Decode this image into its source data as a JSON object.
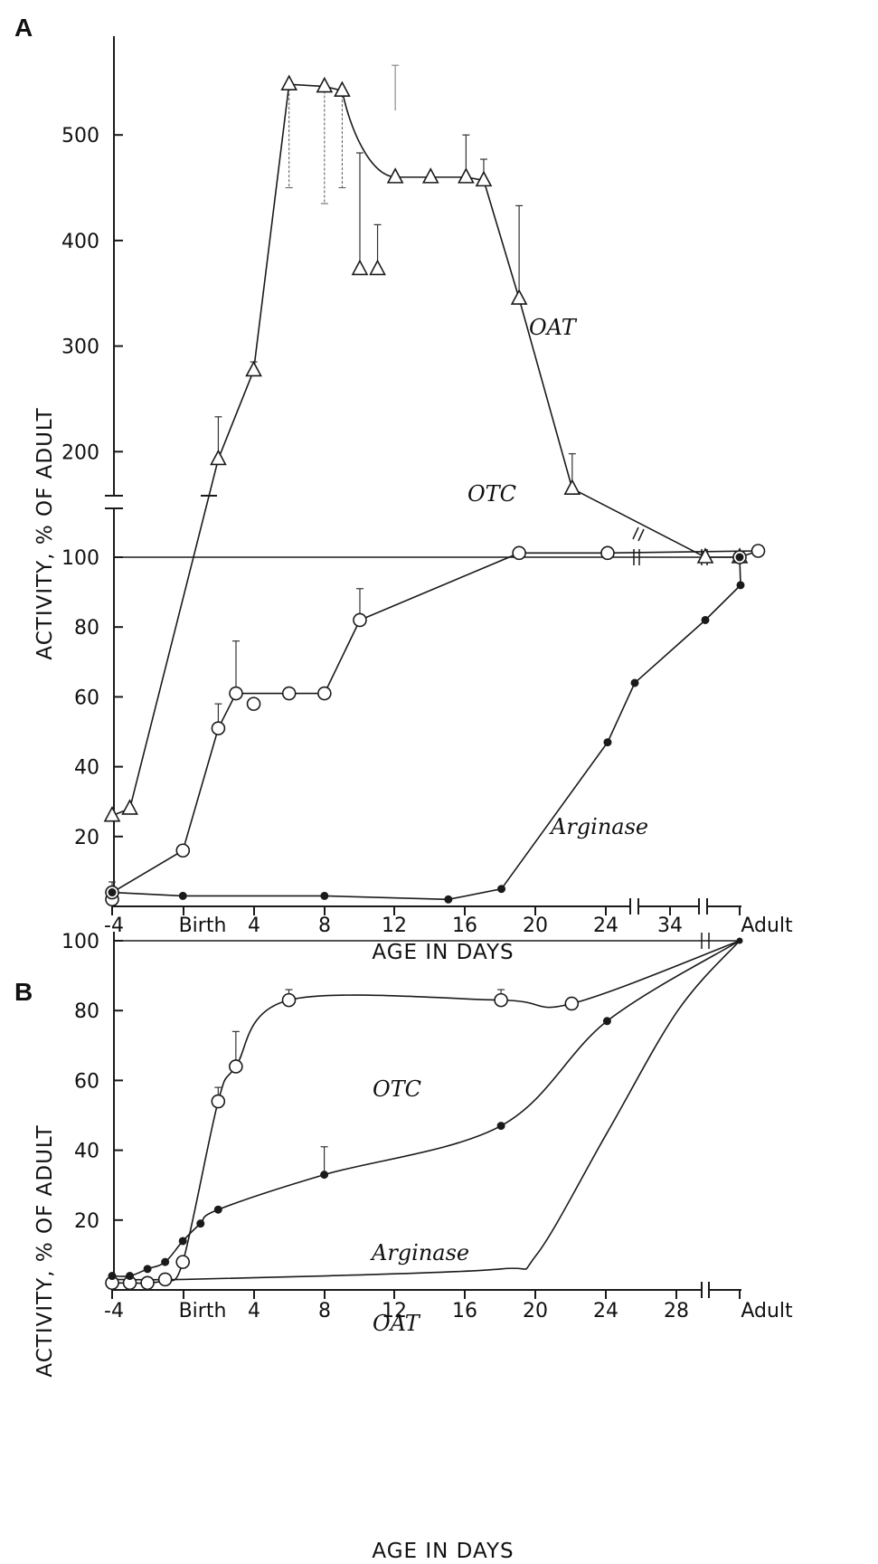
{
  "panels": {
    "a": {
      "letter": "A",
      "xlabel": "AGE IN DAYS",
      "ylabel": "ACTIVITY, % OF ADULT"
    },
    "b": {
      "letter": "B",
      "xlabel": "AGE IN DAYS",
      "ylabel": "ACTIVITY, % OF ADULT"
    }
  },
  "chart_data": [
    {
      "panel": "A",
      "type": "line",
      "xlabel": "AGE IN DAYS",
      "ylabel": "ACTIVITY, % OF ADULT",
      "x_tick_labels": [
        "-4",
        "Birth",
        "4",
        "8",
        "12",
        "16",
        "20",
        "24",
        "34",
        "Adult"
      ],
      "y_tick_labels_lower": [
        "20",
        "40",
        "60",
        "80",
        "100"
      ],
      "y_tick_labels_upper": [
        "200",
        "300",
        "400",
        "500"
      ],
      "y_axis_broken": true,
      "y_scale_note": "0–100 linear lower segment; 100–550 compressed upper segment",
      "reference_line": 100,
      "series": [
        {
          "name": "OAT",
          "marker": "triangle-open",
          "connected": true,
          "points": [
            {
              "x": -4,
              "y": 26
            },
            {
              "x": -3,
              "y": 28
            },
            {
              "x": 2,
              "y": 193,
              "err": 40
            },
            {
              "x": 4,
              "y": 277,
              "err": 8
            },
            {
              "x": 6,
              "y": 548
            },
            {
              "x": 8,
              "y": 546
            },
            {
              "x": 9,
              "y": 542
            },
            {
              "x": 12,
              "y": 460
            },
            {
              "x": 14,
              "y": 460
            },
            {
              "x": 16,
              "y": 460,
              "err": 40
            },
            {
              "x": 17,
              "y": 457,
              "err": 20
            },
            {
              "x": 19,
              "y": 345,
              "err": 88
            },
            {
              "x": 22,
              "y": 165,
              "err": 33
            },
            {
              "x": 34,
              "y": 100
            },
            {
              "x": "Adult",
              "y": 100
            }
          ],
          "unconnected_points": [
            {
              "x": 10,
              "y": 373,
              "err": 110
            },
            {
              "x": 11,
              "y": 373,
              "err": 42
            }
          ],
          "floating_error_bars": [
            {
              "x": 6,
              "low": 450
            },
            {
              "x": 8,
              "low": 435
            },
            {
              "x": 9,
              "low": 450
            },
            {
              "x": 12,
              "high": 566
            }
          ]
        },
        {
          "name": "OTC",
          "marker": "circle-open",
          "connected": true,
          "points": [
            {
              "x": -4,
              "y": 2
            },
            {
              "x": -4,
              "y": 4
            },
            {
              "x": 0,
              "y": 16
            },
            {
              "x": 2,
              "y": 51,
              "err": 7
            },
            {
              "x": 3,
              "y": 61,
              "err": 15
            },
            {
              "x": 6,
              "y": 61
            },
            {
              "x": 8,
              "y": 61
            },
            {
              "x": 10,
              "y": 82,
              "err": 9
            },
            {
              "x": 19,
              "y": 104
            },
            {
              "x": 24,
              "y": 104
            },
            {
              "x": 37,
              "y": 106
            },
            {
              "x": "Adult",
              "y": 100
            }
          ],
          "unconnected_points": [
            {
              "x": 4,
              "y": 58
            }
          ]
        },
        {
          "name": "Arginase",
          "marker": "circle-filled",
          "connected": true,
          "points": [
            {
              "x": -4,
              "y": 4,
              "err": 3
            },
            {
              "x": 0,
              "y": 3
            },
            {
              "x": 8,
              "y": 3
            },
            {
              "x": 15,
              "y": 2
            },
            {
              "x": 18,
              "y": 5
            },
            {
              "x": 24,
              "y": 47
            },
            {
              "x": 30,
              "y": 64
            },
            {
              "x": 34,
              "y": 82
            },
            {
              "x": 36,
              "y": 92
            },
            {
              "x": "Adult",
              "y": 100
            }
          ]
        }
      ]
    },
    {
      "panel": "B",
      "type": "line",
      "xlabel": "AGE IN DAYS",
      "ylabel": "ACTIVITY, % OF ADULT",
      "x_tick_labels": [
        "-4",
        "Birth",
        "4",
        "8",
        "12",
        "16",
        "20",
        "24",
        "28",
        "Adult"
      ],
      "y_tick_labels": [
        "20",
        "40",
        "60",
        "80",
        "100"
      ],
      "ylim": [
        0,
        100
      ],
      "reference_line": 100,
      "series": [
        {
          "name": "OTC",
          "marker": "circle-open",
          "connected": true,
          "points": [
            {
              "x": -4,
              "y": 2
            },
            {
              "x": -3,
              "y": 2
            },
            {
              "x": -2,
              "y": 2
            },
            {
              "x": -1,
              "y": 3
            },
            {
              "x": 0,
              "y": 8
            },
            {
              "x": 2,
              "y": 54,
              "err": 4
            },
            {
              "x": 3,
              "y": 64,
              "err": 10
            },
            {
              "x": 6,
              "y": 83,
              "err": 3
            },
            {
              "x": 18,
              "y": 83,
              "err": 3
            },
            {
              "x": 22,
              "y": 82
            },
            {
              "x": "Adult",
              "y": 100
            }
          ]
        },
        {
          "name": "Arginase",
          "marker": "circle-filled",
          "connected": true,
          "points": [
            {
              "x": -4,
              "y": 4
            },
            {
              "x": -3,
              "y": 4
            },
            {
              "x": -2,
              "y": 6
            },
            {
              "x": -1,
              "y": 8
            },
            {
              "x": 0,
              "y": 14
            },
            {
              "x": 1,
              "y": 19
            },
            {
              "x": 2,
              "y": 23
            },
            {
              "x": 8,
              "y": 33,
              "err": 8
            },
            {
              "x": 18,
              "y": 47
            },
            {
              "x": 24,
              "y": 77
            },
            {
              "x": "Adult",
              "y": 100
            }
          ]
        },
        {
          "name": "OAT",
          "marker": "none",
          "connected": true,
          "points": [
            {
              "x": -4,
              "y": 3
            },
            {
              "x": 0,
              "y": 3
            },
            {
              "x": 8,
              "y": 4
            },
            {
              "x": 18,
              "y": 6
            },
            {
              "x": 20,
              "y": 10
            },
            {
              "x": 24,
              "y": 45
            },
            {
              "x": 28,
              "y": 80
            },
            {
              "x": "Adult",
              "y": 100
            }
          ]
        }
      ]
    }
  ]
}
